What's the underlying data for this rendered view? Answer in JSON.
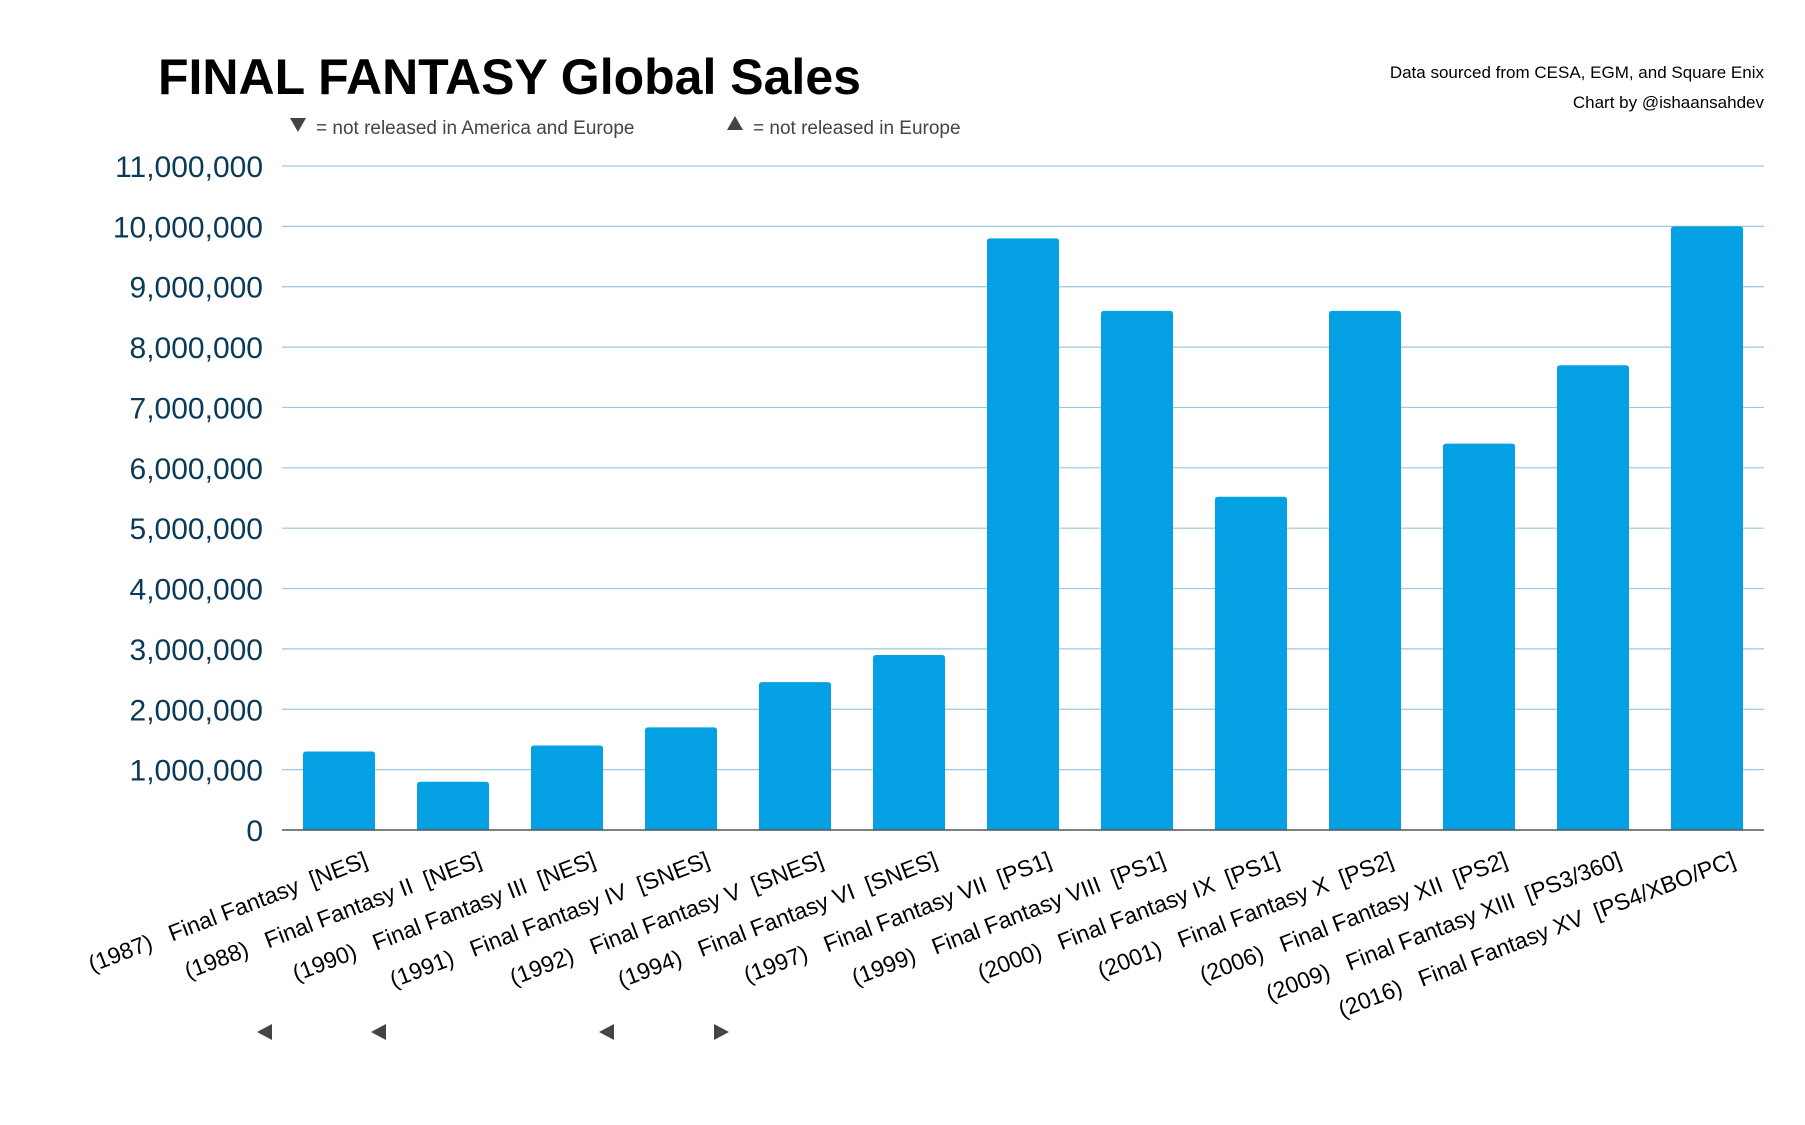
{
  "chart_data": {
    "type": "bar",
    "title": "FINAL FANTASY Global Sales",
    "source_line1": "Data sourced from CESA, EGM, and Square Enix",
    "source_line2": "Chart by @ishaansahdev",
    "legend": [
      {
        "marker": "down-triangle",
        "text": "= not released in America and Europe"
      },
      {
        "marker": "up-triangle",
        "text": "= not released in Europe"
      }
    ],
    "bar_color": "#03a1e3",
    "ylim": [
      0,
      11000000
    ],
    "yticks": [
      {
        "value": 0,
        "label": "0"
      },
      {
        "value": 1000000,
        "label": "1,000,000"
      },
      {
        "value": 2000000,
        "label": "2,000,000"
      },
      {
        "value": 3000000,
        "label": "3,000,000"
      },
      {
        "value": 4000000,
        "label": "4,000,000"
      },
      {
        "value": 5000000,
        "label": "5,000,000"
      },
      {
        "value": 6000000,
        "label": "6,000,000"
      },
      {
        "value": 7000000,
        "label": "7,000,000"
      },
      {
        "value": 8000000,
        "label": "8,000,000"
      },
      {
        "value": 9000000,
        "label": "9,000,000"
      },
      {
        "value": 10000000,
        "label": "10,000,000"
      },
      {
        "value": 11000000,
        "label": "11,000,000"
      }
    ],
    "categories": [
      "(1987)   Final Fantasy  [NES]",
      "(1988)   Final Fantasy II  [NES]",
      "(1990)   Final Fantasy III  [NES]",
      "(1991)   Final Fantasy IV  [SNES]",
      "(1992)   Final Fantasy V  [SNES]",
      "(1994)   Final Fantasy VI  [SNES]",
      "(1997)   Final Fantasy VII  [PS1]",
      "(1999)   Final Fantasy VIII  [PS1]",
      "(2000)   Final Fantasy IX  [PS1]",
      "(2001)   Final Fantasy X  [PS2]",
      "(2006)   Final Fantasy XII  [PS2]",
      "(2009)   Final Fantasy XIII  [PS3/360]",
      "(2016)   Final Fantasy XV  [PS4/XBO/PC]"
    ],
    "markers": [
      "",
      "down-triangle",
      "down-triangle",
      "",
      "down-triangle",
      "up-triangle",
      "",
      "",
      "",
      "",
      "",
      "",
      ""
    ],
    "values": [
      1300000,
      800000,
      1400000,
      1700000,
      2450000,
      2900000,
      9800000,
      8600000,
      5520000,
      8600000,
      6400000,
      7700000,
      10000000
    ]
  }
}
